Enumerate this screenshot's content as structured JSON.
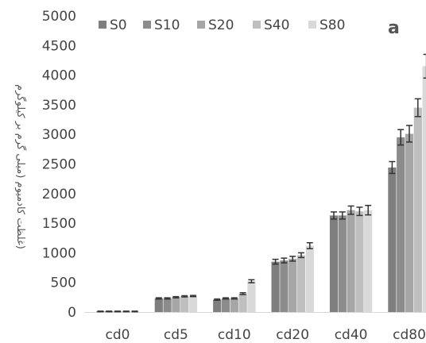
{
  "chart_data": {
    "type": "bar",
    "panel_label": "a",
    "ylabel": "(غلظت کادمیوم (میلی گرم بر کیلوگرم",
    "xlabel": "",
    "ylim": [
      0,
      5000
    ],
    "yticks": [
      0,
      500,
      1000,
      1500,
      2000,
      2500,
      3000,
      3500,
      4000,
      4500,
      5000
    ],
    "categories": [
      "cd0",
      "cd5",
      "cd10",
      "cd20",
      "cd40",
      "cd80"
    ],
    "legend_position": "top",
    "grid": false,
    "series": [
      {
        "name": "S0",
        "color": "#7f7f7f",
        "values": [
          10,
          230,
          210,
          850,
          1630,
          2440
        ],
        "errors": [
          5,
          10,
          10,
          40,
          60,
          100
        ]
      },
      {
        "name": "S10",
        "color": "#8c8c8c",
        "values": [
          10,
          230,
          230,
          870,
          1630,
          2950
        ],
        "errors": [
          5,
          10,
          10,
          40,
          60,
          130
        ]
      },
      {
        "name": "S20",
        "color": "#a6a6a6",
        "values": [
          10,
          250,
          230,
          900,
          1720,
          3010
        ],
        "errors": [
          5,
          10,
          10,
          40,
          70,
          140
        ]
      },
      {
        "name": "S40",
        "color": "#bfbfbf",
        "values": [
          10,
          265,
          310,
          960,
          1700,
          3450
        ],
        "errors": [
          5,
          10,
          15,
          40,
          70,
          150
        ]
      },
      {
        "name": "S80",
        "color": "#d9d9d9",
        "values": [
          10,
          270,
          520,
          1120,
          1720,
          4150
        ],
        "errors": [
          5,
          10,
          25,
          50,
          80,
          200
        ]
      }
    ]
  }
}
